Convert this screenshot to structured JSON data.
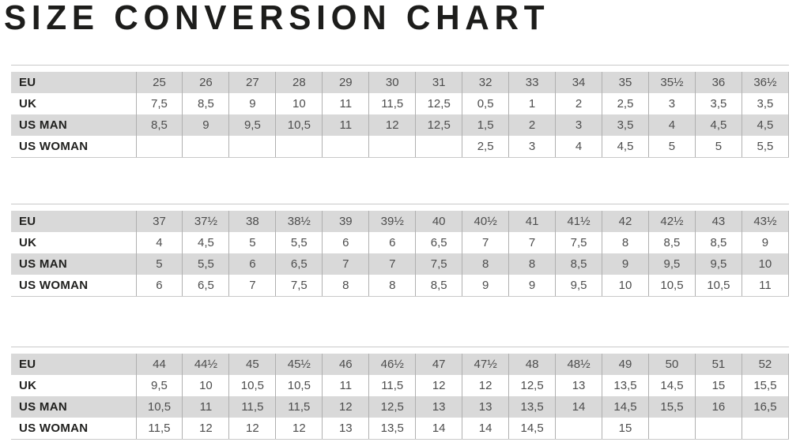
{
  "page_title": "SIZE CONVERSION CHART",
  "colors": {
    "title_text": "#1d1d1b",
    "label_text": "#21211f",
    "value_text": "#4d4d4d",
    "row_shaded_bg": "#d9d9d9",
    "row_plain_bg": "#ffffff",
    "cell_border": "#b0b0b0",
    "table_rule": "#c9c9c9"
  },
  "chart_data": [
    {
      "type": "table",
      "series": [
        {
          "name": "EU",
          "values": [
            "25",
            "26",
            "27",
            "28",
            "29",
            "30",
            "31",
            "32",
            "33",
            "34",
            "35",
            "35½",
            "36",
            "36½"
          ]
        },
        {
          "name": "UK",
          "values": [
            "7,5",
            "8,5",
            "9",
            "10",
            "11",
            "11,5",
            "12,5",
            "0,5",
            "1",
            "2",
            "2,5",
            "3",
            "3,5",
            "3,5"
          ]
        },
        {
          "name": "US MAN",
          "values": [
            "8,5",
            "9",
            "9,5",
            "10,5",
            "11",
            "12",
            "12,5",
            "1,5",
            "2",
            "3",
            "3,5",
            "4",
            "4,5",
            "4,5"
          ]
        },
        {
          "name": "US WOMAN",
          "values": [
            "",
            "",
            "",
            "",
            "",
            "",
            "",
            "2,5",
            "3",
            "4",
            "4,5",
            "5",
            "5",
            "5,5"
          ]
        }
      ]
    },
    {
      "type": "table",
      "series": [
        {
          "name": "EU",
          "values": [
            "37",
            "37½",
            "38",
            "38½",
            "39",
            "39½",
            "40",
            "40½",
            "41",
            "41½",
            "42",
            "42½",
            "43",
            "43½"
          ]
        },
        {
          "name": "UK",
          "values": [
            "4",
            "4,5",
            "5",
            "5,5",
            "6",
            "6",
            "6,5",
            "7",
            "7",
            "7,5",
            "8",
            "8,5",
            "8,5",
            "9"
          ]
        },
        {
          "name": "US MAN",
          "values": [
            "5",
            "5,5",
            "6",
            "6,5",
            "7",
            "7",
            "7,5",
            "8",
            "8",
            "8,5",
            "9",
            "9,5",
            "9,5",
            "10"
          ]
        },
        {
          "name": "US WOMAN",
          "values": [
            "6",
            "6,5",
            "7",
            "7,5",
            "8",
            "8",
            "8,5",
            "9",
            "9",
            "9,5",
            "10",
            "10,5",
            "10,5",
            "11"
          ]
        }
      ]
    },
    {
      "type": "table",
      "series": [
        {
          "name": "EU",
          "values": [
            "44",
            "44½",
            "45",
            "45½",
            "46",
            "46½",
            "47",
            "47½",
            "48",
            "48½",
            "49",
            "50",
            "51",
            "52"
          ]
        },
        {
          "name": "UK",
          "values": [
            "9,5",
            "10",
            "10,5",
            "10,5",
            "11",
            "11,5",
            "12",
            "12",
            "12,5",
            "13",
            "13,5",
            "14,5",
            "15",
            "15,5"
          ]
        },
        {
          "name": "US MAN",
          "values": [
            "10,5",
            "11",
            "11,5",
            "11,5",
            "12",
            "12,5",
            "13",
            "13",
            "13,5",
            "14",
            "14,5",
            "15,5",
            "16",
            "16,5"
          ]
        },
        {
          "name": "US WOMAN",
          "values": [
            "11,5",
            "12",
            "12",
            "12",
            "13",
            "13,5",
            "14",
            "14",
            "14,5",
            "",
            "15",
            "",
            "",
            ""
          ]
        }
      ]
    }
  ]
}
